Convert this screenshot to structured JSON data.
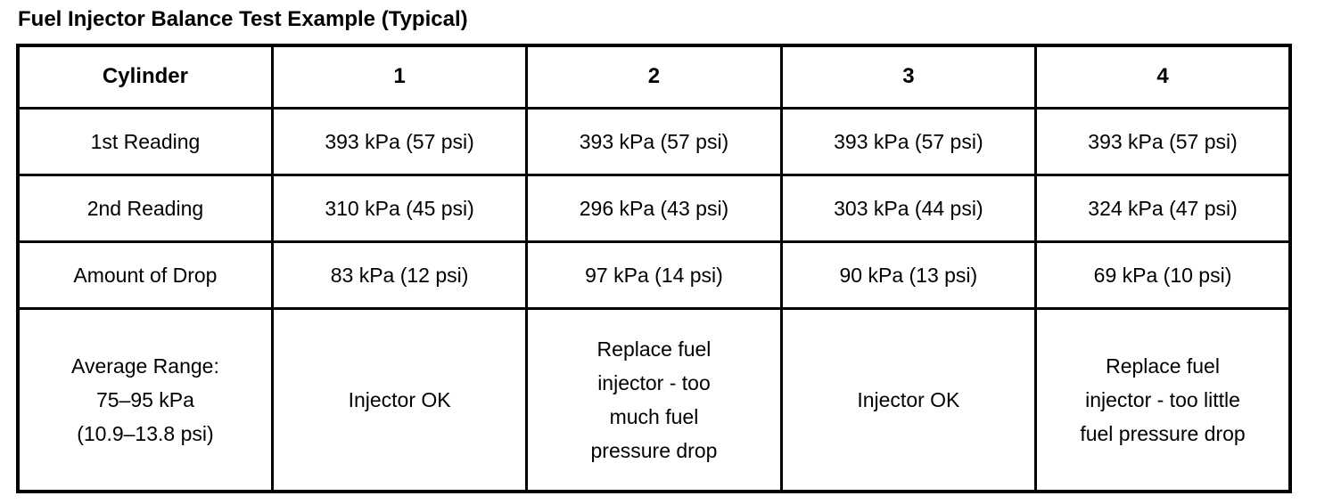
{
  "page": {
    "title": "Fuel Injector Balance Test Example (Typical)"
  },
  "table": {
    "header": [
      "Cylinder",
      "1",
      "2",
      "3",
      "4"
    ],
    "rows": [
      {
        "label": "1st Reading",
        "cells": [
          "393 kPa (57 psi)",
          "393 kPa (57 psi)",
          "393 kPa (57 psi)",
          "393 kPa (57 psi)"
        ]
      },
      {
        "label": "2nd Reading",
        "cells": [
          "310 kPa (45 psi)",
          "296 kPa (43 psi)",
          "303 kPa (44 psi)",
          "324 kPa (47 psi)"
        ]
      },
      {
        "label": "Amount of Drop",
        "cells": [
          "83 kPa (12 psi)",
          "97 kPa (14 psi)",
          "90 kPa (13 psi)",
          "69 kPa (10 psi)"
        ]
      },
      {
        "label": "Average Range:\n75–95 kPa\n(10.9–13.8 psi)",
        "cells": [
          "Injector OK",
          "Replace fuel\ninjector - too\nmuch fuel\npressure drop",
          "Injector OK",
          "Replace fuel\ninjector - too little\nfuel pressure drop"
        ]
      }
    ]
  },
  "colors": {
    "text": "#000000",
    "border": "#000000",
    "background": "#ffffff"
  }
}
